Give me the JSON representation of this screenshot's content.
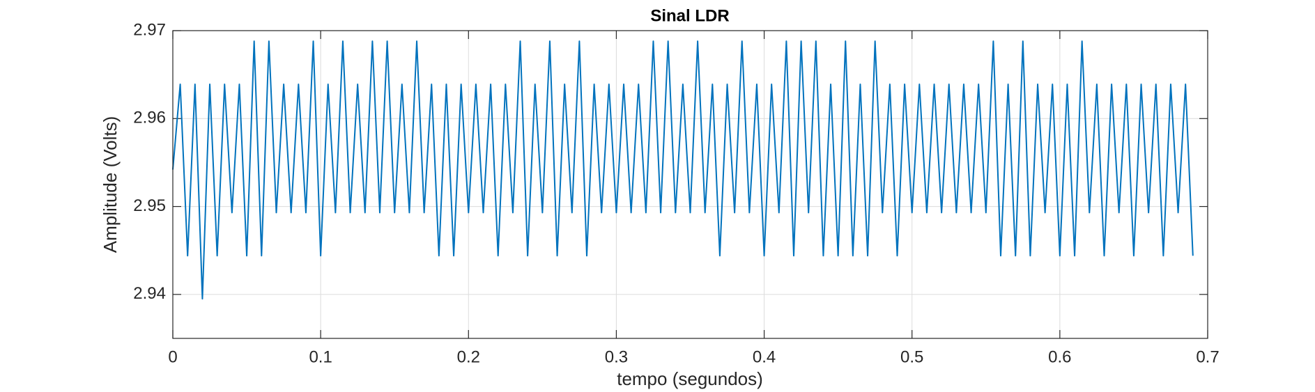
{
  "chart_data": {
    "type": "line",
    "title": "Sinal LDR",
    "x_label": "tempo (segundos)",
    "y_label": "Amplitude (Volts)",
    "x": [
      0,
      0.005,
      0.01,
      0.015,
      0.02,
      0.025,
      0.03,
      0.035,
      0.04,
      0.045,
      0.05,
      0.055,
      0.06,
      0.065,
      0.07,
      0.075,
      0.08,
      0.085,
      0.09,
      0.095,
      0.1,
      0.105,
      0.11,
      0.115,
      0.12,
      0.125,
      0.13,
      0.135,
      0.14,
      0.145,
      0.15,
      0.155,
      0.16,
      0.165,
      0.17,
      0.175,
      0.18,
      0.185,
      0.19,
      0.195,
      0.2,
      0.205,
      0.21,
      0.215,
      0.22,
      0.225,
      0.23,
      0.235,
      0.24,
      0.245,
      0.25,
      0.255,
      0.26,
      0.265,
      0.27,
      0.275,
      0.28,
      0.285,
      0.29,
      0.295,
      0.3,
      0.305,
      0.31,
      0.315,
      0.32,
      0.325,
      0.33,
      0.335,
      0.34,
      0.345,
      0.35,
      0.355,
      0.36,
      0.365,
      0.37,
      0.375,
      0.38,
      0.385,
      0.39,
      0.395,
      0.4,
      0.405,
      0.41,
      0.415,
      0.42,
      0.425,
      0.43,
      0.435,
      0.44,
      0.445,
      0.45,
      0.455,
      0.46,
      0.465,
      0.47,
      0.475,
      0.48,
      0.485,
      0.49,
      0.495,
      0.5,
      0.505,
      0.51,
      0.515,
      0.52,
      0.525,
      0.53,
      0.535,
      0.54,
      0.545,
      0.55,
      0.555,
      0.56,
      0.565,
      0.57,
      0.575,
      0.58,
      0.585,
      0.59,
      0.595,
      0.6,
      0.605,
      0.61,
      0.615,
      0.62,
      0.625,
      0.63,
      0.635,
      0.64,
      0.645,
      0.65,
      0.655,
      0.66,
      0.665,
      0.67,
      0.675,
      0.68,
      0.685,
      0.69
    ],
    "series": [
      {
        "color": "#0072bd",
        "values": [
          2.9542,
          2.9639,
          2.9444,
          2.9639,
          2.9395,
          2.9639,
          2.9444,
          2.9639,
          2.9493,
          2.9639,
          2.9444,
          2.9688,
          2.9444,
          2.9688,
          2.9493,
          2.9639,
          2.9493,
          2.9639,
          2.9493,
          2.9688,
          2.9444,
          2.9639,
          2.9493,
          2.9688,
          2.9493,
          2.9639,
          2.9493,
          2.9688,
          2.9493,
          2.9688,
          2.9493,
          2.9639,
          2.9493,
          2.9688,
          2.9493,
          2.9639,
          2.9444,
          2.9639,
          2.9444,
          2.9639,
          2.9493,
          2.9639,
          2.9493,
          2.9639,
          2.9444,
          2.9639,
          2.9493,
          2.9688,
          2.9444,
          2.9639,
          2.9493,
          2.9688,
          2.9444,
          2.9639,
          2.9493,
          2.9688,
          2.9444,
          2.9639,
          2.9493,
          2.9639,
          2.9493,
          2.9639,
          2.9493,
          2.9639,
          2.9493,
          2.9688,
          2.9493,
          2.9688,
          2.9493,
          2.9639,
          2.9493,
          2.9688,
          2.9493,
          2.9639,
          2.9444,
          2.9639,
          2.9493,
          2.9688,
          2.9493,
          2.9639,
          2.9444,
          2.9639,
          2.9493,
          2.9688,
          2.9444,
          2.9688,
          2.9493,
          2.9688,
          2.9444,
          2.9639,
          2.9444,
          2.9688,
          2.9444,
          2.9639,
          2.9444,
          2.9688,
          2.9493,
          2.9639,
          2.9444,
          2.9639,
          2.9493,
          2.9639,
          2.9493,
          2.9639,
          2.9493,
          2.9639,
          2.9493,
          2.9639,
          2.9493,
          2.9639,
          2.9493,
          2.9688,
          2.9444,
          2.9639,
          2.9444,
          2.9688,
          2.9444,
          2.9639,
          2.9493,
          2.9639,
          2.9444,
          2.9639,
          2.9444,
          2.9688,
          2.9493,
          2.9639,
          2.9444,
          2.9639,
          2.9493,
          2.9639,
          2.9444,
          2.9639,
          2.9493,
          2.9639,
          2.9444,
          2.9639,
          2.9493,
          2.9639,
          2.9444
        ]
      }
    ],
    "xlim": [
      0,
      0.7
    ],
    "xticks": [
      0,
      0.1,
      0.2,
      0.3,
      0.4,
      0.5,
      0.6,
      0.7
    ],
    "ylim": [
      2.935,
      2.97
    ],
    "yticks": [
      2.94,
      2.95,
      2.96,
      2.97
    ],
    "grid": true
  }
}
